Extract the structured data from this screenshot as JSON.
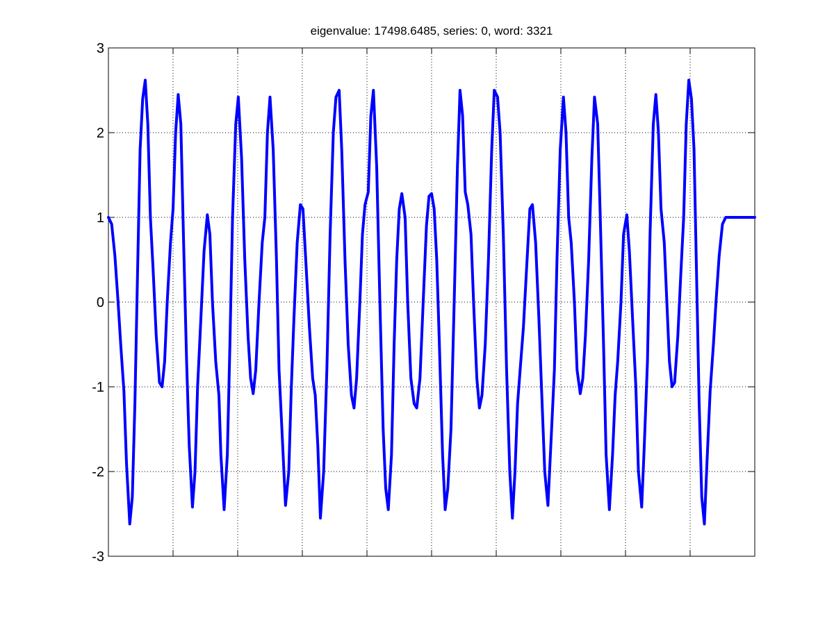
{
  "chart_data": {
    "type": "line",
    "title": "eigenvalue: 17498.6485, series: 0, word: 3321",
    "xlabel": "",
    "ylabel": "",
    "ylim": [
      -3,
      3
    ],
    "xlim": [
      0,
      1
    ],
    "y_ticks": [
      "3",
      "2",
      "1",
      "0",
      "-1",
      "-2",
      "-3"
    ],
    "x_ticks_unlabeled_count": 9,
    "grid": true,
    "grid_style": "dotted",
    "line_color": "#0000ff",
    "series": [
      {
        "values": [
          [
            0.0,
            1.0
          ],
          [
            0.005,
            0.92
          ],
          [
            0.01,
            0.55
          ],
          [
            0.015,
            0.0
          ],
          [
            0.019,
            -0.5
          ],
          [
            0.024,
            -1.05
          ],
          [
            0.028,
            -1.9
          ],
          [
            0.033,
            -2.62
          ],
          [
            0.037,
            -2.3
          ],
          [
            0.041,
            -1.2
          ],
          [
            0.045,
            0.3
          ],
          [
            0.049,
            1.8
          ],
          [
            0.053,
            2.4
          ],
          [
            0.057,
            2.62
          ],
          [
            0.061,
            2.1
          ],
          [
            0.065,
            1.0
          ],
          [
            0.069,
            0.4
          ],
          [
            0.074,
            -0.4
          ],
          [
            0.079,
            -0.95
          ],
          [
            0.083,
            -1.0
          ],
          [
            0.087,
            -0.7
          ],
          [
            0.091,
            0.0
          ],
          [
            0.096,
            0.7
          ],
          [
            0.1,
            1.1
          ],
          [
            0.104,
            2.0
          ],
          [
            0.108,
            2.45
          ],
          [
            0.112,
            2.1
          ],
          [
            0.116,
            0.8
          ],
          [
            0.121,
            -0.7
          ],
          [
            0.125,
            -1.7
          ],
          [
            0.13,
            -2.42
          ],
          [
            0.134,
            -2.0
          ],
          [
            0.138,
            -1.0
          ],
          [
            0.143,
            -0.2
          ],
          [
            0.148,
            0.6
          ],
          [
            0.153,
            1.03
          ],
          [
            0.157,
            0.8
          ],
          [
            0.161,
            0.0
          ],
          [
            0.166,
            -0.7
          ],
          [
            0.171,
            -1.1
          ],
          [
            0.174,
            -1.8
          ],
          [
            0.179,
            -2.45
          ],
          [
            0.184,
            -1.8
          ],
          [
            0.188,
            -0.5
          ],
          [
            0.192,
            1.0
          ],
          [
            0.197,
            2.1
          ],
          [
            0.201,
            2.42
          ],
          [
            0.206,
            1.7
          ],
          [
            0.211,
            0.5
          ],
          [
            0.216,
            -0.4
          ],
          [
            0.22,
            -0.9
          ],
          [
            0.224,
            -1.08
          ],
          [
            0.228,
            -0.8
          ],
          [
            0.233,
            0.0
          ],
          [
            0.238,
            0.7
          ],
          [
            0.242,
            1.0
          ],
          [
            0.246,
            2.0
          ],
          [
            0.25,
            2.42
          ],
          [
            0.255,
            1.8
          ],
          [
            0.26,
            0.5
          ],
          [
            0.264,
            -0.8
          ],
          [
            0.269,
            -1.6
          ],
          [
            0.274,
            -2.4
          ],
          [
            0.279,
            -2.0
          ],
          [
            0.283,
            -1.0
          ],
          [
            0.287,
            -0.2
          ],
          [
            0.292,
            0.7
          ],
          [
            0.297,
            1.15
          ],
          [
            0.301,
            1.1
          ],
          [
            0.306,
            0.4
          ],
          [
            0.311,
            -0.3
          ],
          [
            0.316,
            -0.9
          ],
          [
            0.32,
            -1.1
          ],
          [
            0.324,
            -1.7
          ],
          [
            0.328,
            -2.55
          ],
          [
            0.333,
            -2.0
          ],
          [
            0.338,
            -0.8
          ],
          [
            0.343,
            0.8
          ],
          [
            0.348,
            2.0
          ],
          [
            0.352,
            2.42
          ],
          [
            0.357,
            2.5
          ],
          [
            0.361,
            1.8
          ],
          [
            0.366,
            0.5
          ],
          [
            0.371,
            -0.5
          ],
          [
            0.376,
            -1.1
          ],
          [
            0.38,
            -1.25
          ],
          [
            0.384,
            -0.9
          ],
          [
            0.389,
            0.0
          ],
          [
            0.393,
            0.8
          ],
          [
            0.397,
            1.15
          ],
          [
            0.402,
            1.3
          ],
          [
            0.406,
            2.2
          ],
          [
            0.41,
            2.5
          ],
          [
            0.415,
            1.6
          ],
          [
            0.42,
            0.0
          ],
          [
            0.425,
            -1.5
          ],
          [
            0.429,
            -2.2
          ],
          [
            0.433,
            -2.45
          ],
          [
            0.438,
            -1.8
          ],
          [
            0.442,
            -0.5
          ],
          [
            0.446,
            0.5
          ],
          [
            0.45,
            1.1
          ],
          [
            0.454,
            1.28
          ],
          [
            0.459,
            1.0
          ],
          [
            0.463,
            0.0
          ],
          [
            0.468,
            -0.9
          ],
          [
            0.473,
            -1.2
          ],
          [
            0.477,
            -1.25
          ],
          [
            0.482,
            -0.9
          ],
          [
            0.487,
            0.0
          ],
          [
            0.492,
            0.9
          ],
          [
            0.496,
            1.25
          ],
          [
            0.5,
            1.28
          ],
          [
            0.504,
            1.1
          ],
          [
            0.508,
            0.5
          ],
          [
            0.512,
            -0.5
          ],
          [
            0.517,
            -1.8
          ],
          [
            0.521,
            -2.45
          ],
          [
            0.525,
            -2.2
          ],
          [
            0.53,
            -1.5
          ],
          [
            0.535,
            0.0
          ],
          [
            0.54,
            1.6
          ],
          [
            0.544,
            2.5
          ],
          [
            0.548,
            2.2
          ],
          [
            0.552,
            1.3
          ],
          [
            0.556,
            1.15
          ],
          [
            0.561,
            0.8
          ],
          [
            0.565,
            0.0
          ],
          [
            0.57,
            -0.9
          ],
          [
            0.574,
            -1.25
          ],
          [
            0.578,
            -1.1
          ],
          [
            0.583,
            -0.5
          ],
          [
            0.588,
            0.5
          ],
          [
            0.593,
            1.8
          ],
          [
            0.597,
            2.5
          ],
          [
            0.602,
            2.42
          ],
          [
            0.606,
            2.0
          ],
          [
            0.611,
            0.8
          ],
          [
            0.616,
            -0.8
          ],
          [
            0.621,
            -2.0
          ],
          [
            0.625,
            -2.55
          ],
          [
            0.629,
            -2.0
          ],
          [
            0.633,
            -1.2
          ],
          [
            0.637,
            -0.8
          ],
          [
            0.642,
            -0.3
          ],
          [
            0.647,
            0.4
          ],
          [
            0.652,
            1.1
          ],
          [
            0.656,
            1.15
          ],
          [
            0.661,
            0.7
          ],
          [
            0.666,
            -0.2
          ],
          [
            0.67,
            -1.0
          ],
          [
            0.675,
            -2.0
          ],
          [
            0.68,
            -2.4
          ],
          [
            0.685,
            -1.6
          ],
          [
            0.69,
            -0.8
          ],
          [
            0.694,
            0.5
          ],
          [
            0.699,
            1.8
          ],
          [
            0.704,
            2.42
          ],
          [
            0.708,
            2.0
          ],
          [
            0.712,
            1.0
          ],
          [
            0.716,
            0.7
          ],
          [
            0.721,
            0.0
          ],
          [
            0.725,
            -0.8
          ],
          [
            0.73,
            -1.08
          ],
          [
            0.734,
            -0.9
          ],
          [
            0.738,
            -0.4
          ],
          [
            0.743,
            0.5
          ],
          [
            0.748,
            1.7
          ],
          [
            0.752,
            2.42
          ],
          [
            0.757,
            2.1
          ],
          [
            0.761,
            1.0
          ],
          [
            0.766,
            -0.5
          ],
          [
            0.77,
            -1.8
          ],
          [
            0.775,
            -2.45
          ],
          [
            0.78,
            -1.8
          ],
          [
            0.784,
            -1.1
          ],
          [
            0.788,
            -0.7
          ],
          [
            0.793,
            0.0
          ],
          [
            0.797,
            0.8
          ],
          [
            0.802,
            1.03
          ],
          [
            0.806,
            0.6
          ],
          [
            0.811,
            -0.2
          ],
          [
            0.816,
            -1.0
          ],
          [
            0.82,
            -2.0
          ],
          [
            0.825,
            -2.42
          ],
          [
            0.829,
            -1.7
          ],
          [
            0.834,
            -0.7
          ],
          [
            0.838,
            0.8
          ],
          [
            0.843,
            2.1
          ],
          [
            0.847,
            2.45
          ],
          [
            0.851,
            2.0
          ],
          [
            0.855,
            1.1
          ],
          [
            0.86,
            0.7
          ],
          [
            0.864,
            0.0
          ],
          [
            0.868,
            -0.7
          ],
          [
            0.872,
            -1.0
          ],
          [
            0.876,
            -0.95
          ],
          [
            0.881,
            -0.4
          ],
          [
            0.886,
            0.4
          ],
          [
            0.89,
            1.0
          ],
          [
            0.894,
            2.1
          ],
          [
            0.898,
            2.62
          ],
          [
            0.902,
            2.4
          ],
          [
            0.906,
            1.8
          ],
          [
            0.91,
            0.3
          ],
          [
            0.914,
            -1.2
          ],
          [
            0.918,
            -2.3
          ],
          [
            0.922,
            -2.62
          ],
          [
            0.926,
            -1.9
          ],
          [
            0.931,
            -1.05
          ],
          [
            0.936,
            -0.5
          ],
          [
            0.94,
            0.0
          ],
          [
            0.945,
            0.55
          ],
          [
            0.95,
            0.92
          ],
          [
            0.955,
            1.0
          ],
          [
            1.0,
            1.0
          ]
        ]
      }
    ]
  }
}
